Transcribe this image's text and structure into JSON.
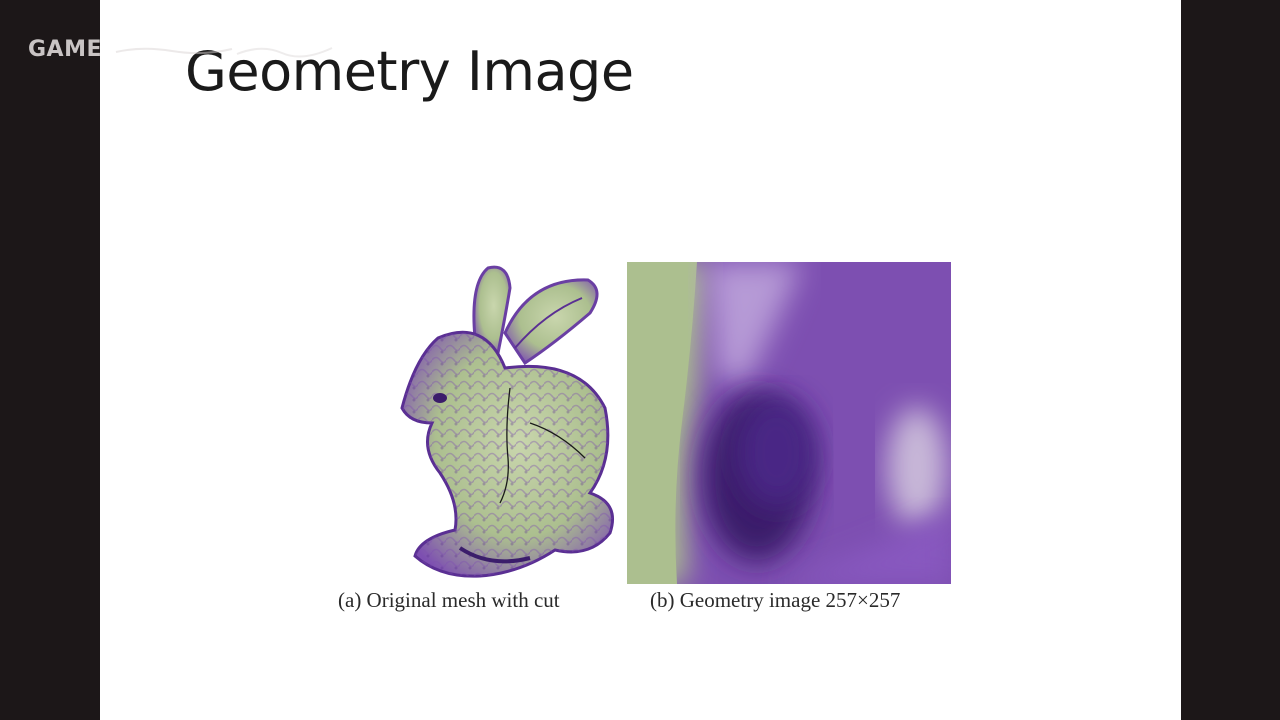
{
  "watermark": {
    "text": "GAME"
  },
  "slide": {
    "title": "Geometry Image",
    "figures": [
      {
        "caption": "(a) Original mesh with cut",
        "icon": "bunny-mesh-icon"
      },
      {
        "caption": "(b) Geometry image 257×257",
        "icon": "geometry-image-icon"
      }
    ]
  },
  "colors": {
    "green": "#acbf8f",
    "purple": "#7d4fb1",
    "dark_purple": "#3b1d6b"
  }
}
